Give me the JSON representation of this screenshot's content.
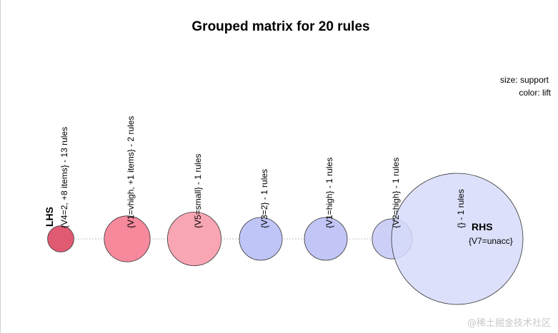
{
  "chart_data": {
    "type": "scatter",
    "title": "Grouped matrix for 20 rules",
    "legend": {
      "size_label": "size: support",
      "color_label": "color: lift",
      "placement": "top-right"
    },
    "lhs_axis_label": "LHS",
    "rhs_axis_label": "RHS",
    "rhs_group": "{V7=unacc}",
    "groups": [
      {
        "label": "{V4=2, +8 items} - 13 rules",
        "support": 0.18,
        "lift": 1.45,
        "color": "#e05a72"
      },
      {
        "label": "{V1=vhigh, +1 items} - 2 rules",
        "support": 0.55,
        "lift": 1.35,
        "color": "#f7899c"
      },
      {
        "label": "{V5=small} - 1 rules",
        "support": 0.75,
        "lift": 1.25,
        "color": "#f9a6b4"
      },
      {
        "label": "{V3=2} - 1 rules",
        "support": 0.48,
        "lift": 1.05,
        "color": "#c0c5f7"
      },
      {
        "label": "{V1=high} - 1 rules",
        "support": 0.48,
        "lift": 1.05,
        "color": "#c2c6f6"
      },
      {
        "label": "{V2=high} - 1 rules",
        "support": 0.42,
        "lift": 1.02,
        "color": "#ccd0f7"
      },
      {
        "label": "{} - 1 rules",
        "support": 4.5,
        "lift": 1.0,
        "color": "#d6daf9",
        "opacity": 0.85
      }
    ]
  },
  "watermark": "@稀土掘金技术社区"
}
